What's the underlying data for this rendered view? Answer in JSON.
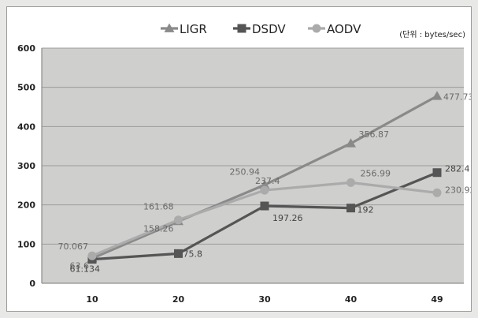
{
  "chart_data": {
    "type": "line",
    "title": "",
    "unit_note": "(단위 : bytes/sec)",
    "xlabel": "",
    "ylabel": "",
    "categories": [
      "10",
      "20",
      "30",
      "40",
      "49"
    ],
    "ylim": [
      0,
      600
    ],
    "yticks": [
      "0",
      "100",
      "200",
      "300",
      "400",
      "500",
      "600"
    ],
    "grid": true,
    "legend_position": "top",
    "series": [
      {
        "name": "LIGR",
        "marker": "triangle",
        "color": "#8a8a8a",
        "values": [
          63.6,
          158.26,
          250.94,
          356.87,
          477.73
        ],
        "labels": [
          "63.6",
          "158.26",
          "250.94",
          "356.87",
          "477.73"
        ]
      },
      {
        "name": "DSDV",
        "marker": "square",
        "color": "#555555",
        "values": [
          61.134,
          75.8,
          197.26,
          192,
          282.4
        ],
        "labels": [
          "61.134",
          "75.8",
          "197.26",
          "192",
          "282.4"
        ]
      },
      {
        "name": "AODV",
        "marker": "circle",
        "color": "#ababab",
        "values": [
          70.067,
          161.68,
          237.4,
          256.99,
          230.92
        ],
        "labels": [
          "70.067",
          "161.68",
          "237.4",
          "256.99",
          "230.92"
        ]
      }
    ]
  }
}
